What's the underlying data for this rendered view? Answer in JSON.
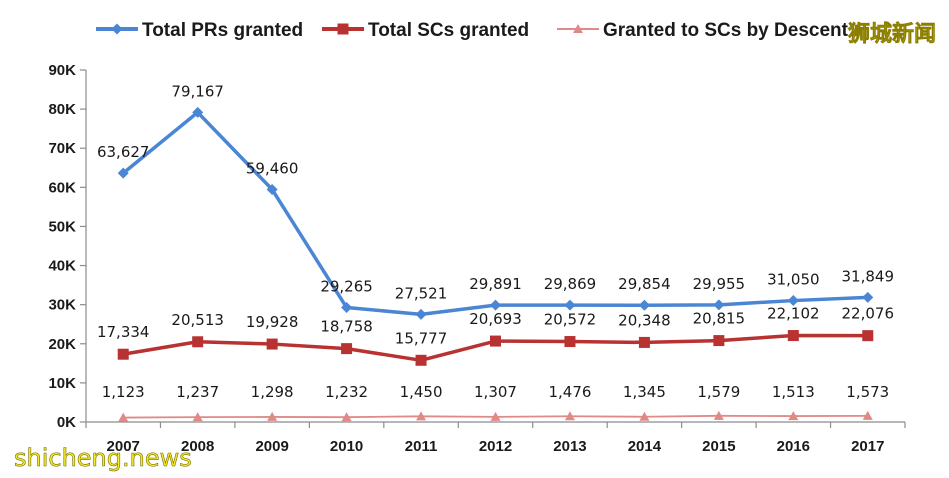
{
  "chart_data": {
    "type": "line",
    "title": "",
    "xlabel": "",
    "ylabel": "",
    "categories": [
      "2007",
      "2008",
      "2009",
      "2010",
      "2011",
      "2012",
      "2013",
      "2014",
      "2015",
      "2016",
      "2017"
    ],
    "ylim": [
      0,
      90000
    ],
    "y_ticks": [
      0,
      10000,
      20000,
      30000,
      40000,
      50000,
      60000,
      70000,
      80000,
      90000
    ],
    "y_tick_labels": [
      "0K",
      "10K",
      "20K",
      "30K",
      "40K",
      "50K",
      "60K",
      "70K",
      "80K",
      "90K"
    ],
    "grid": false,
    "legend_position": "top",
    "series": [
      {
        "name": "Total PRs granted",
        "color": "#4a86d4",
        "marker": "diamond",
        "values": [
          63627,
          79167,
          59460,
          29265,
          27521,
          29891,
          29869,
          29854,
          29955,
          31050,
          31849
        ],
        "labels": [
          "63,627",
          "79,167",
          "59,460",
          "29,265",
          "27,521",
          "29,891",
          "29,869",
          "29,854",
          "29,955",
          "31,050",
          "31,849"
        ]
      },
      {
        "name": "Total SCs granted",
        "color": "#b83232",
        "marker": "square",
        "values": [
          17334,
          20513,
          19928,
          18758,
          15777,
          20693,
          20572,
          20348,
          20815,
          22102,
          22076
        ],
        "labels": [
          "17,334",
          "20,513",
          "19,928",
          "18,758",
          "15,777",
          "20,693",
          "20,572",
          "20,348",
          "20,815",
          "22,102",
          "22,076"
        ]
      },
      {
        "name": "Granted to SCs by Descent",
        "color": "#e08a88",
        "marker": "triangle",
        "values": [
          1123,
          1237,
          1298,
          1232,
          1450,
          1307,
          1476,
          1345,
          1579,
          1513,
          1573
        ],
        "labels": [
          "1,123",
          "1,237",
          "1,298",
          "1,232",
          "1,450",
          "1,307",
          "1,476",
          "1,345",
          "1,579",
          "1,513",
          "1,573"
        ]
      }
    ]
  },
  "legend": {
    "items": [
      "Total PRs granted",
      "Total SCs granted",
      "Granted to SCs by Descent"
    ]
  },
  "watermarks": {
    "top_right": "狮城新闻",
    "bottom_left": "shicheng.news"
  }
}
